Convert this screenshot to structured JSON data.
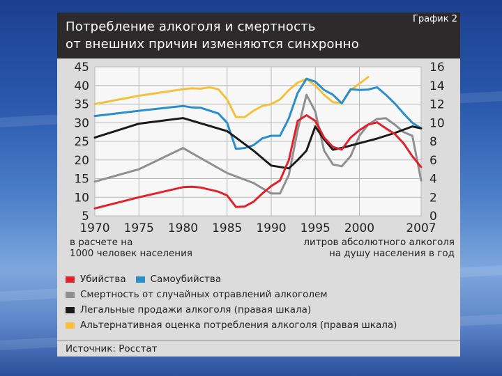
{
  "slide": {
    "title_line1": "Потребление алкоголя и смертность",
    "title_line2": "от внешних причин изменяются синхронно",
    "graph_tag": "График 2",
    "source": "Источник: Росстат"
  },
  "colors": {
    "murders": "#e0222a",
    "suicides": "#2a8fc8",
    "poisonings": "#8f8f8f",
    "legal_sales": "#1a1a1a",
    "alt_estimate": "#f5c13c"
  },
  "chart_data": {
    "type": "line",
    "left_axis": {
      "ylim": [
        5,
        45
      ],
      "ticks": [
        "5",
        "10",
        "15",
        "20",
        "25",
        "30",
        "35",
        "40",
        "45"
      ],
      "label_line1": "в расчете на",
      "label_line2": "1000 человек населения"
    },
    "right_axis": {
      "ylim": [
        0,
        16
      ],
      "ticks": [
        "0",
        "2",
        "4",
        "6",
        "8",
        "10",
        "12",
        "14",
        "16"
      ],
      "label_line1": "литров абсолютного алкоголя",
      "label_line2": "на душу населения в год"
    },
    "x_axis": {
      "xlim": [
        1970,
        2007
      ],
      "ticks": [
        "1970",
        "1975",
        "1980",
        "1985",
        "1990",
        "1995",
        "2000",
        "2007"
      ]
    },
    "grid": true,
    "legend_position": "bottom",
    "series": [
      {
        "name": "Убийства",
        "axis": "left",
        "color_key": "murders",
        "points": [
          [
            1970,
            7
          ],
          [
            1975,
            10
          ],
          [
            1980,
            12.7
          ],
          [
            1981,
            12.8
          ],
          [
            1982,
            12.6
          ],
          [
            1984,
            11.5
          ],
          [
            1985,
            10.5
          ],
          [
            1986,
            7.4
          ],
          [
            1987,
            7.5
          ],
          [
            1988,
            8.8
          ],
          [
            1989,
            11
          ],
          [
            1990,
            13
          ],
          [
            1991,
            14.5
          ],
          [
            1992,
            20
          ],
          [
            1993,
            30.5
          ],
          [
            1994,
            32
          ],
          [
            1995,
            30.5
          ],
          [
            1996,
            26
          ],
          [
            1997,
            23.5
          ],
          [
            1998,
            22.8
          ],
          [
            1999,
            26
          ],
          [
            2000,
            28
          ],
          [
            2001,
            29.5
          ],
          [
            2002,
            30.1
          ],
          [
            2003,
            28.5
          ],
          [
            2004,
            27
          ],
          [
            2005,
            24.5
          ],
          [
            2006,
            21
          ],
          [
            2007,
            18.1
          ]
        ]
      },
      {
        "name": "Самоубийства",
        "axis": "left",
        "color_key": "suicides",
        "points": [
          [
            1970,
            31.8
          ],
          [
            1975,
            33.2
          ],
          [
            1980,
            34.5
          ],
          [
            1981,
            34.1
          ],
          [
            1982,
            34
          ],
          [
            1984,
            32.5
          ],
          [
            1985,
            30
          ],
          [
            1986,
            23
          ],
          [
            1987,
            23.2
          ],
          [
            1988,
            24
          ],
          [
            1989,
            25.8
          ],
          [
            1990,
            26.5
          ],
          [
            1991,
            26.5
          ],
          [
            1992,
            31.2
          ],
          [
            1993,
            38
          ],
          [
            1994,
            41.8
          ],
          [
            1995,
            41
          ],
          [
            1996,
            38.8
          ],
          [
            1997,
            37.5
          ],
          [
            1998,
            35.2
          ],
          [
            1999,
            39
          ],
          [
            2000,
            38.8
          ],
          [
            2001,
            38.9
          ],
          [
            2002,
            39.5
          ],
          [
            2003,
            37.5
          ],
          [
            2004,
            35.2
          ],
          [
            2005,
            32.5
          ],
          [
            2006,
            30
          ],
          [
            2007,
            28.5
          ]
        ]
      },
      {
        "name": "Смертность от случайных отравлений алкоголем",
        "axis": "left",
        "color_key": "poisonings",
        "points": [
          [
            1970,
            14.2
          ],
          [
            1975,
            17.5
          ],
          [
            1980,
            23.2
          ],
          [
            1982,
            20.5
          ],
          [
            1985,
            16.5
          ],
          [
            1988,
            13.8
          ],
          [
            1990,
            11
          ],
          [
            1991,
            11
          ],
          [
            1992,
            16
          ],
          [
            1993,
            28
          ],
          [
            1994,
            37.5
          ],
          [
            1995,
            33
          ],
          [
            1996,
            22.5
          ],
          [
            1997,
            18.8
          ],
          [
            1998,
            18.3
          ],
          [
            1999,
            21
          ],
          [
            2000,
            26.5
          ],
          [
            2001,
            29.5
          ],
          [
            2002,
            31
          ],
          [
            2003,
            31.2
          ],
          [
            2004,
            29.5
          ],
          [
            2005,
            27.5
          ],
          [
            2006,
            26.5
          ],
          [
            2007,
            14.5
          ]
        ]
      },
      {
        "name": "Легальные продажи алкоголя (правая шкала)",
        "axis": "right",
        "color_key": "legal_sales",
        "points": [
          [
            1970,
            8.4
          ],
          [
            1975,
            9.9
          ],
          [
            1980,
            10.5
          ],
          [
            1985,
            9.1
          ],
          [
            1986,
            8.4
          ],
          [
            1988,
            7
          ],
          [
            1989,
            6.2
          ],
          [
            1990,
            5.4
          ],
          [
            1992,
            5.1
          ],
          [
            1993,
            6
          ],
          [
            1994,
            7
          ],
          [
            1995,
            9.6
          ],
          [
            1996,
            8.2
          ],
          [
            1997,
            7.1
          ],
          [
            1998,
            7.3
          ],
          [
            2000,
            7.8
          ],
          [
            2002,
            8.3
          ],
          [
            2004,
            8.9
          ],
          [
            2006,
            9.6
          ],
          [
            2007,
            9.4
          ]
        ]
      },
      {
        "name": "Альтернативная оценка потребления алкоголя (правая шкала)",
        "axis": "right",
        "color_key": "alt_estimate",
        "points": [
          [
            1970,
            12
          ],
          [
            1975,
            12.9
          ],
          [
            1980,
            13.6
          ],
          [
            1981,
            13.7
          ],
          [
            1982,
            13.65
          ],
          [
            1983,
            13.8
          ],
          [
            1984,
            13.6
          ],
          [
            1985,
            12.5
          ],
          [
            1986,
            10.6
          ],
          [
            1987,
            10.6
          ],
          [
            1988,
            11.3
          ],
          [
            1989,
            11.8
          ],
          [
            1990,
            12
          ],
          [
            1991,
            12.5
          ],
          [
            1992,
            13.5
          ],
          [
            1993,
            14.3
          ],
          [
            1994,
            14.7
          ],
          [
            1995,
            14
          ],
          [
            1996,
            13
          ],
          [
            1997,
            12.2
          ],
          [
            1998,
            12.1
          ],
          [
            1999,
            13.5
          ],
          [
            2000,
            14.2
          ],
          [
            2001,
            14.9
          ]
        ]
      }
    ]
  }
}
